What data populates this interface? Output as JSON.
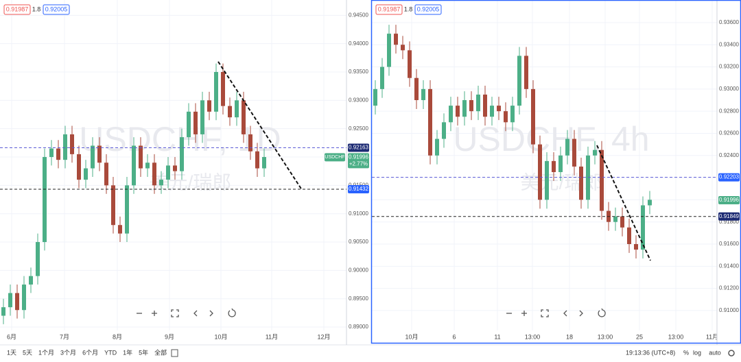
{
  "chart_data": [
    {
      "type": "candlestick",
      "header": {
        "bid": 0.91987,
        "spread": 1.8,
        "ask": 0.92005
      },
      "watermark": "USDCHF, 1D",
      "watermark_sub": "美元/瑞郎",
      "symbol_label": "USDCHF",
      "current_price": 0.91996,
      "change": "+2.77%",
      "up_color": "#4caf87",
      "down_color": "#a94a3b",
      "xlim": [
        0,
        50.5
      ],
      "ylim": [
        0.8894,
        0.9477
      ],
      "xticks": [
        {
          "value": 1.7,
          "label": "6月"
        },
        {
          "value": 9.4,
          "label": "7月"
        },
        {
          "value": 17.1,
          "label": "8月"
        },
        {
          "value": 24.7,
          "label": "9月"
        },
        {
          "value": 32.2,
          "label": "10月"
        },
        {
          "value": 39.6,
          "label": "11月"
        },
        {
          "value": 47.2,
          "label": "12月"
        }
      ],
      "yticks": [
        {
          "value": 0.945,
          "label": "0.94500"
        },
        {
          "value": 0.94,
          "label": "0.94000"
        },
        {
          "value": 0.935,
          "label": "0.93500"
        },
        {
          "value": 0.93,
          "label": "0.93000"
        },
        {
          "value": 0.925,
          "label": "0.92500"
        },
        {
          "value": 0.92,
          "label": "0.92000"
        },
        {
          "value": 0.915,
          "label": "0.91500"
        },
        {
          "value": 0.91,
          "label": "0.91000"
        },
        {
          "value": 0.905,
          "label": "0.90500"
        },
        {
          "value": 0.9,
          "label": "0.90000"
        },
        {
          "value": 0.895,
          "label": "0.89500"
        },
        {
          "value": 0.89,
          "label": "0.89000"
        }
      ],
      "x": [
        0.5,
        1.5,
        2.5,
        3.5,
        4.5,
        5.5,
        6.5,
        7.5,
        8.5,
        9.5,
        10.5,
        11.5,
        12.5,
        13.5,
        14.5,
        15.5,
        16.5,
        17.5,
        18.5,
        19.5,
        20.5,
        21.5,
        22.5,
        23.5,
        24.5,
        25.5,
        26.5,
        27.5,
        28.5,
        29.5,
        30.5,
        31.5,
        32.5,
        33.5,
        34.5,
        35.5,
        36.5,
        37.5,
        38.5
      ],
      "open": [
        0.892,
        0.8935,
        0.896,
        0.893,
        0.8975,
        0.899,
        0.905,
        0.92,
        0.9215,
        0.9195,
        0.924,
        0.9205,
        0.916,
        0.918,
        0.922,
        0.919,
        0.915,
        0.908,
        0.9065,
        0.915,
        0.922,
        0.918,
        0.919,
        0.915,
        0.916,
        0.9185,
        0.9175,
        0.9235,
        0.928,
        0.924,
        0.93,
        0.928,
        0.935,
        0.929,
        0.927,
        0.93,
        0.924,
        0.921,
        0.918
      ],
      "high": [
        0.895,
        0.8975,
        0.8975,
        0.899,
        0.9005,
        0.9065,
        0.9215,
        0.923,
        0.923,
        0.9255,
        0.9255,
        0.922,
        0.9195,
        0.9235,
        0.9235,
        0.9205,
        0.9165,
        0.9095,
        0.9165,
        0.9235,
        0.9235,
        0.9205,
        0.9205,
        0.9175,
        0.92,
        0.92,
        0.925,
        0.9295,
        0.9295,
        0.9315,
        0.9315,
        0.9365,
        0.9365,
        0.9305,
        0.9315,
        0.9315,
        0.9255,
        0.9225,
        0.9215
      ],
      "low": [
        0.8905,
        0.892,
        0.8915,
        0.8915,
        0.896,
        0.8975,
        0.9035,
        0.9185,
        0.918,
        0.918,
        0.919,
        0.9145,
        0.9145,
        0.9165,
        0.9175,
        0.9135,
        0.9065,
        0.905,
        0.905,
        0.9135,
        0.9165,
        0.9165,
        0.9135,
        0.9135,
        0.9145,
        0.916,
        0.916,
        0.922,
        0.9225,
        0.9225,
        0.9265,
        0.9265,
        0.9275,
        0.9255,
        0.9255,
        0.9225,
        0.9195,
        0.9165,
        0.9165
      ],
      "close": [
        0.8935,
        0.896,
        0.893,
        0.8975,
        0.899,
        0.905,
        0.92,
        0.9215,
        0.9195,
        0.924,
        0.9205,
        0.916,
        0.918,
        0.922,
        0.919,
        0.915,
        0.908,
        0.9065,
        0.915,
        0.922,
        0.918,
        0.919,
        0.915,
        0.916,
        0.9185,
        0.9175,
        0.9235,
        0.928,
        0.924,
        0.93,
        0.928,
        0.935,
        0.929,
        0.927,
        0.93,
        0.924,
        0.921,
        0.918,
        0.92
      ],
      "price_lines": [
        {
          "value": 0.92163,
          "color": "#5b5bd6",
          "label_bg": "#1c2a73"
        },
        {
          "value": 0.91432,
          "color": "#222222",
          "label_bg": "#2962ff"
        }
      ],
      "trend_line": {
        "x": [
          31.8,
          44.0
        ],
        "y": [
          0.93682,
          0.91422
        ]
      }
    },
    {
      "type": "candlestick",
      "header": {
        "bid": 0.91987,
        "spread": 1.8,
        "ask": 0.92005
      },
      "watermark": "USDCHF, 4h",
      "watermark_sub": "美元/瑞郎",
      "current_price": 0.91996,
      "up_color": "#4caf87",
      "down_color": "#a94a3b",
      "xlim": [
        0,
        50.3
      ],
      "ylim": [
        0.9082,
        0.93804
      ],
      "xticks": [
        {
          "value": 5.8,
          "label": "10月"
        },
        {
          "value": 12.0,
          "label": "6"
        },
        {
          "value": 18.3,
          "label": "11"
        },
        {
          "value": 23.4,
          "label": "13:00"
        },
        {
          "value": 28.8,
          "label": "18"
        },
        {
          "value": 34.0,
          "label": "13:00"
        },
        {
          "value": 39.0,
          "label": "25"
        },
        {
          "value": 44.3,
          "label": "13:00"
        },
        {
          "value": 49.6,
          "label": "11月"
        }
      ],
      "yticks": [
        {
          "value": 0.936,
          "label": "0.93600"
        },
        {
          "value": 0.934,
          "label": "0.93400"
        },
        {
          "value": 0.932,
          "label": "0.93200"
        },
        {
          "value": 0.93,
          "label": "0.93000"
        },
        {
          "value": 0.928,
          "label": "0.92800"
        },
        {
          "value": 0.926,
          "label": "0.92600"
        },
        {
          "value": 0.924,
          "label": "0.92400"
        },
        {
          "value": 0.922,
          "label": "0.92200"
        },
        {
          "value": 0.92,
          "label": "0.92000"
        },
        {
          "value": 0.918,
          "label": "0.91800"
        },
        {
          "value": 0.916,
          "label": "0.91600"
        },
        {
          "value": 0.914,
          "label": "0.91400"
        },
        {
          "value": 0.912,
          "label": "0.91200"
        },
        {
          "value": 0.91,
          "label": "0.91000"
        }
      ],
      "x": [
        0.5,
        1.5,
        2.5,
        3.5,
        4.5,
        5.5,
        6.5,
        7.5,
        8.5,
        9.5,
        10.5,
        11.5,
        12.5,
        13.5,
        14.5,
        15.5,
        16.5,
        17.5,
        18.5,
        19.5,
        20.5,
        21.5,
        22.5,
        23.5,
        24.5,
        25.5,
        26.5,
        27.5,
        28.5,
        29.5,
        30.5,
        31.5,
        32.5,
        33.5,
        34.5,
        35.5,
        36.5,
        37.5,
        38.5,
        39.5,
        40.5
      ],
      "open": [
        0.9285,
        0.93,
        0.932,
        0.935,
        0.934,
        0.9335,
        0.931,
        0.929,
        0.93,
        0.924,
        0.9255,
        0.927,
        0.9285,
        0.9275,
        0.929,
        0.928,
        0.9295,
        0.9275,
        0.9285,
        0.928,
        0.927,
        0.9285,
        0.933,
        0.93,
        0.925,
        0.92,
        0.9235,
        0.9225,
        0.924,
        0.9255,
        0.923,
        0.92,
        0.924,
        0.9245,
        0.919,
        0.918,
        0.9185,
        0.9175,
        0.916,
        0.9155,
        0.9195
      ],
      "high": [
        0.9308,
        0.9328,
        0.9358,
        0.9358,
        0.9348,
        0.9343,
        0.9318,
        0.9308,
        0.9308,
        0.9263,
        0.9278,
        0.9293,
        0.9293,
        0.9298,
        0.9298,
        0.9303,
        0.9303,
        0.9293,
        0.9293,
        0.9288,
        0.9293,
        0.9338,
        0.9338,
        0.9308,
        0.9258,
        0.9243,
        0.9243,
        0.9248,
        0.9263,
        0.9263,
        0.9238,
        0.9248,
        0.9253,
        0.9253,
        0.9198,
        0.9193,
        0.9193,
        0.9183,
        0.9168,
        0.9203,
        0.9208
      ],
      "low": [
        0.9277,
        0.9292,
        0.9312,
        0.9332,
        0.9327,
        0.9302,
        0.9282,
        0.9282,
        0.9232,
        0.9232,
        0.9247,
        0.9262,
        0.9267,
        0.9267,
        0.9272,
        0.9272,
        0.9267,
        0.9267,
        0.9272,
        0.9262,
        0.9262,
        0.9277,
        0.9292,
        0.9242,
        0.9192,
        0.9192,
        0.9217,
        0.9217,
        0.9232,
        0.9222,
        0.9192,
        0.9192,
        0.9232,
        0.9182,
        0.9172,
        0.9172,
        0.9167,
        0.9152,
        0.9147,
        0.9147,
        0.9187
      ],
      "close": [
        0.93,
        0.932,
        0.935,
        0.934,
        0.9335,
        0.931,
        0.929,
        0.93,
        0.924,
        0.9255,
        0.927,
        0.9285,
        0.9275,
        0.929,
        0.928,
        0.9295,
        0.9275,
        0.9285,
        0.928,
        0.927,
        0.9285,
        0.933,
        0.93,
        0.925,
        0.92,
        0.9235,
        0.9225,
        0.924,
        0.9255,
        0.923,
        0.92,
        0.924,
        0.9245,
        0.919,
        0.918,
        0.9185,
        0.9175,
        0.916,
        0.9155,
        0.9195,
        0.92
      ],
      "price_lines": [
        {
          "value": 0.92203,
          "color": "#5b5bd6",
          "label_bg": "#2962ff"
        },
        {
          "value": 0.91849,
          "color": "#222222",
          "label_bg": "#1c2a73"
        }
      ],
      "trend_line": {
        "x": [
          32.8,
          40.6
        ],
        "y": [
          0.92492,
          0.91452
        ]
      }
    }
  ],
  "toolbar": {
    "ranges": [
      "1天",
      "5天",
      "1个月",
      "3个月",
      "6个月",
      "YTD",
      "1年",
      "5年",
      "全部"
    ],
    "clock": "19:13:36 (UTC+8)",
    "toggles": [
      "%",
      "log",
      "auto"
    ]
  }
}
